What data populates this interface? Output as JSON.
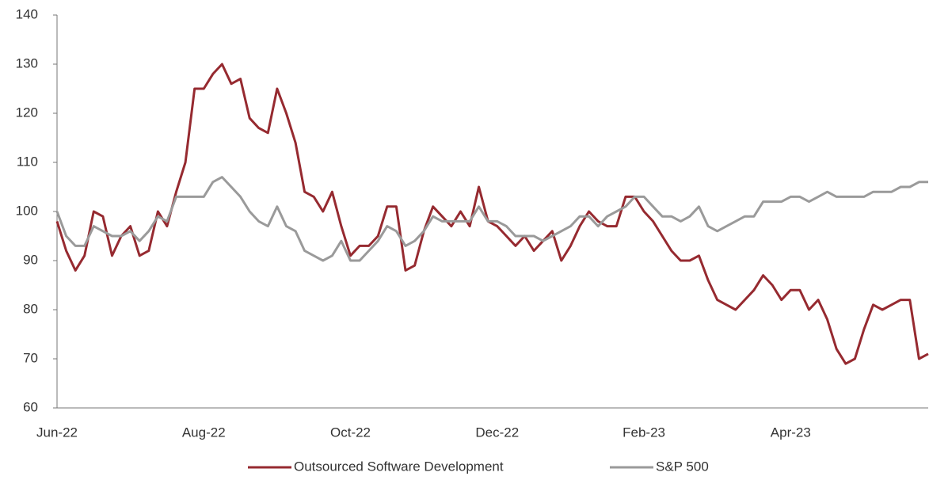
{
  "chart_data": {
    "type": "line",
    "categories": [
      "Jun-22",
      null,
      null,
      null,
      null,
      null,
      null,
      null,
      null,
      null,
      null,
      null,
      null,
      null,
      null,
      null,
      "Aug-22",
      null,
      null,
      null,
      null,
      null,
      null,
      null,
      null,
      null,
      null,
      null,
      null,
      null,
      null,
      null,
      "Oct-22",
      null,
      null,
      null,
      null,
      null,
      null,
      null,
      null,
      null,
      null,
      null,
      null,
      null,
      null,
      null,
      "Dec-22",
      null,
      null,
      null,
      null,
      null,
      null,
      null,
      null,
      null,
      null,
      null,
      null,
      null,
      null,
      null,
      "Feb-23",
      null,
      null,
      null,
      null,
      null,
      null,
      null,
      null,
      null,
      null,
      null,
      null,
      null,
      null,
      null,
      "Apr-23",
      null,
      null,
      null,
      null,
      null,
      null,
      null,
      null,
      null,
      null,
      null,
      null,
      null,
      null,
      null
    ],
    "series": [
      {
        "name": "Outsourced Software Development",
        "color": "#962a30",
        "values": [
          98,
          92,
          88,
          91,
          100,
          99,
          91,
          95,
          97,
          91,
          92,
          100,
          97,
          104,
          110,
          125,
          125,
          128,
          130,
          126,
          127,
          119,
          117,
          116,
          125,
          120,
          114,
          104,
          103,
          100,
          104,
          97,
          91,
          93,
          93,
          95,
          101,
          101,
          88,
          89,
          96,
          101,
          99,
          97,
          100,
          97,
          105,
          98,
          97,
          95,
          93,
          95,
          92,
          94,
          96,
          90,
          93,
          97,
          100,
          98,
          97,
          97,
          103,
          103,
          100,
          98,
          95,
          92,
          90,
          90,
          91,
          86,
          82,
          81,
          80,
          82,
          84,
          87,
          85,
          82,
          84,
          84,
          80,
          82,
          78,
          72,
          69,
          70,
          76,
          81,
          80,
          81,
          82,
          82,
          70,
          71
        ]
      },
      {
        "name": "S&P 500",
        "color": "#9a9a9a",
        "values": [
          100,
          95,
          93,
          93,
          97,
          96,
          95,
          95,
          96,
          94,
          96,
          99,
          98,
          103,
          103,
          103,
          103,
          106,
          107,
          105,
          103,
          100,
          98,
          97,
          101,
          97,
          96,
          92,
          91,
          90,
          91,
          94,
          90,
          90,
          92,
          94,
          97,
          96,
          93,
          94,
          96,
          99,
          98,
          98,
          98,
          98,
          101,
          98,
          98,
          97,
          95,
          95,
          95,
          94,
          95,
          96,
          97,
          99,
          99,
          97,
          99,
          100,
          101,
          103,
          103,
          101,
          99,
          99,
          98,
          99,
          101,
          97,
          96,
          97,
          98,
          99,
          99,
          102,
          102,
          102,
          103,
          103,
          102,
          103,
          104,
          103,
          103,
          103,
          103,
          104,
          104,
          104,
          105,
          105,
          106,
          106
        ]
      }
    ],
    "ylim": [
      60,
      140
    ],
    "yticks": [
      60,
      70,
      80,
      90,
      100,
      110,
      120,
      130,
      140
    ],
    "legend": "bottom"
  }
}
